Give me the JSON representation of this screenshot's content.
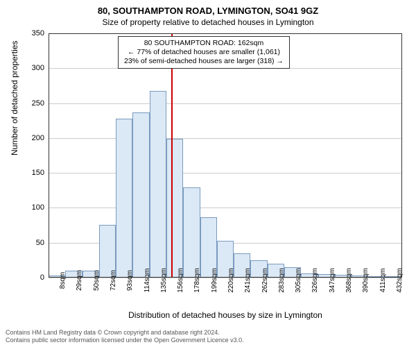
{
  "title": "80, SOUTHAMPTON ROAD, LYMINGTON, SO41 9GZ",
  "subtitle": "Size of property relative to detached houses in Lymington",
  "annotation": {
    "line1": "80 SOUTHAMPTON ROAD: 162sqm",
    "line2": "← 77% of detached houses are smaller (1,061)",
    "line3": "23% of semi-detached houses are larger (318) →"
  },
  "y_axis": {
    "label": "Number of detached properties",
    "min": 0,
    "max": 350,
    "step": 50,
    "ticks": [
      0,
      50,
      100,
      150,
      200,
      250,
      300,
      350
    ]
  },
  "x_axis": {
    "label": "Distribution of detached houses by size in Lymington",
    "categories": [
      "8sqm",
      "29sqm",
      "50sqm",
      "72sqm",
      "93sqm",
      "114sqm",
      "135sqm",
      "156sqm",
      "178sqm",
      "199sqm",
      "220sqm",
      "241sqm",
      "262sqm",
      "283sqm",
      "305sqm",
      "326sqm",
      "347sqm",
      "368sqm",
      "390sqm",
      "411sqm",
      "432sqm"
    ]
  },
  "bars": {
    "values": [
      3,
      10,
      10,
      76,
      228,
      237,
      267,
      199,
      129,
      87,
      53,
      35,
      25,
      20,
      15,
      6,
      5,
      4,
      3,
      2,
      2
    ],
    "fill_color": "#dbe8f5",
    "border_color": "#7a9bbf"
  },
  "reference_line": {
    "value_sqm": 162,
    "color": "#cc0000",
    "bar_index_after": 7
  },
  "grid_color": "#cccccc",
  "background_color": "#ffffff",
  "footer": {
    "line1": "Contains HM Land Registry data © Crown copyright and database right 2024.",
    "line2": "Contains public sector information licensed under the Open Government Licence v3.0."
  }
}
